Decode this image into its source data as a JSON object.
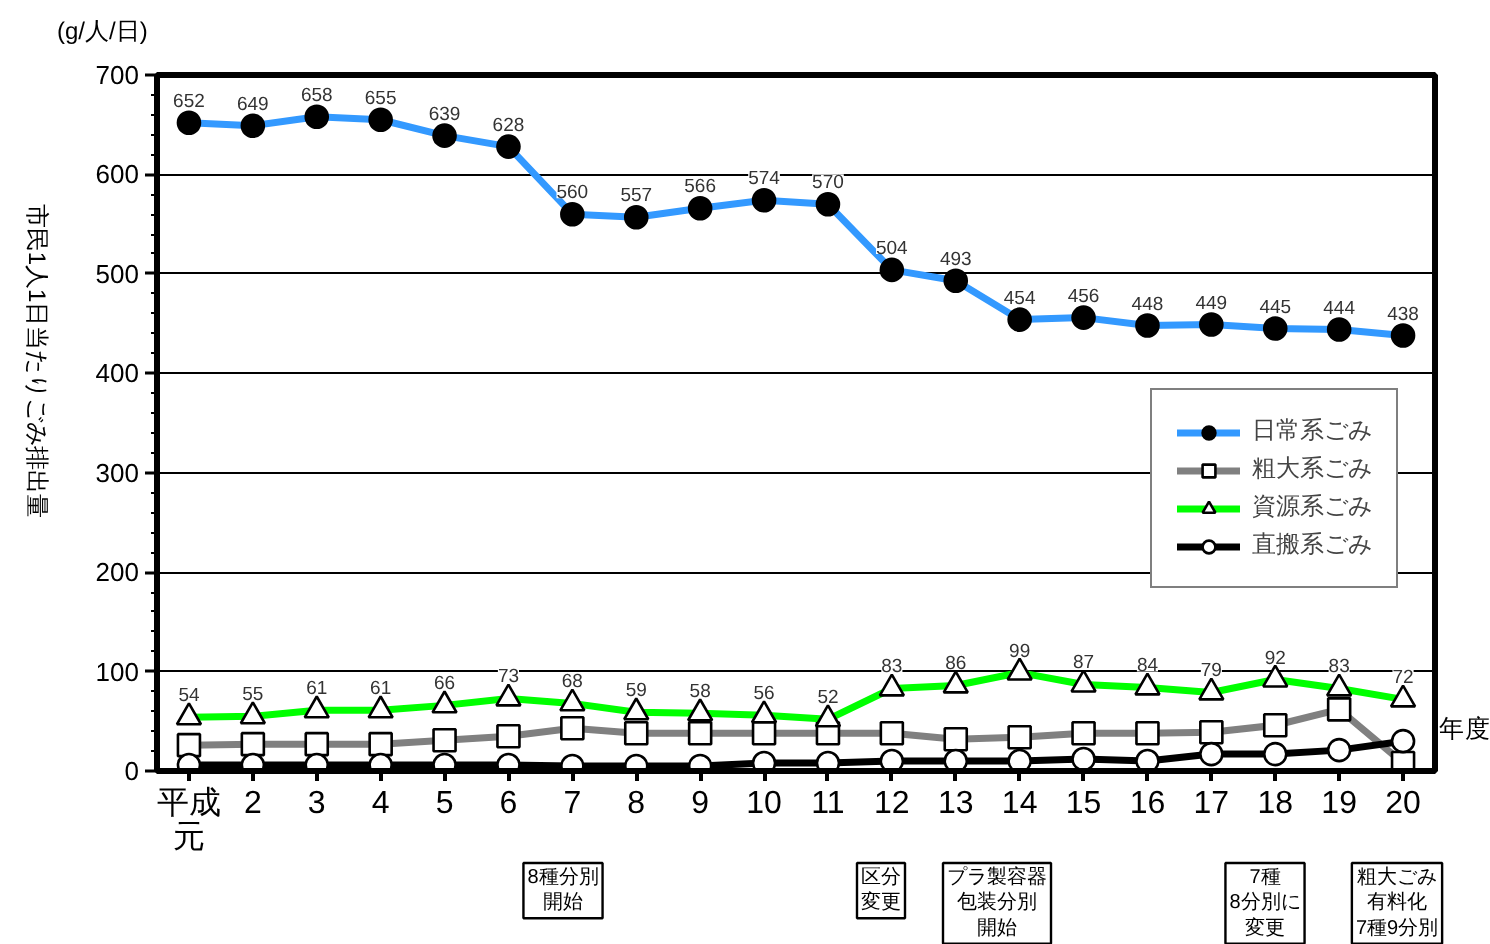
{
  "chart_data": {
    "type": "line",
    "ylabel": "市民1人1日当たりごみ排出量",
    "xlabel": "年度",
    "annotations": [
      "(g/人/日)",
      "8種分別開始",
      "区分変更",
      "プラ製容器包装分別開始",
      "7種8分別に変更",
      "粗大ごみ有料化7種9分別"
    ],
    "categories": [
      "平成元",
      "2",
      "3",
      "4",
      "5",
      "6",
      "7",
      "8",
      "9",
      "10",
      "11",
      "12",
      "13",
      "14",
      "15",
      "16",
      "17",
      "18",
      "19",
      "20"
    ],
    "ylim": [
      0,
      700
    ],
    "yticks": [
      0,
      {
        "value": 20,
        "label": null
      },
      {
        "value": 40,
        "label": null
      },
      {
        "value": 60,
        "label": null
      },
      {
        "value": 80,
        "label": null
      },
      100,
      {
        "value": 120,
        "label": null
      },
      {
        "value": 140,
        "label": null
      },
      {
        "value": 160,
        "label": null
      },
      {
        "value": 180,
        "label": null
      },
      200,
      {
        "value": 220,
        "label": null
      },
      {
        "value": 240,
        "label": null
      },
      {
        "value": 260,
        "label": null
      },
      {
        "value": 280,
        "label": null
      },
      300,
      {
        "value": 320,
        "label": null
      },
      {
        "value": 340,
        "label": null
      },
      {
        "value": 360,
        "label": null
      },
      {
        "value": 380,
        "label": null
      },
      400,
      {
        "value": 420,
        "label": null
      },
      {
        "value": 440,
        "label": null
      },
      {
        "value": 460,
        "label": null
      },
      {
        "value": 480,
        "label": null
      },
      500,
      {
        "value": 520,
        "label": null
      },
      {
        "value": 540,
        "label": null
      },
      {
        "value": 560,
        "label": null
      },
      {
        "value": 580,
        "label": null
      },
      600,
      {
        "value": 620,
        "label": null
      },
      {
        "value": 640,
        "label": null
      },
      {
        "value": 660,
        "label": null
      },
      {
        "value": 680,
        "label": null
      },
      700
    ],
    "grid": "y",
    "legend": "right",
    "series": [
      {
        "name": "日常系ごみ",
        "color": "#3399ff",
        "marker": "circle",
        "colors": [
          "#000000",
          "#000000",
          "#000000",
          "#000000",
          "#000000",
          "#000000",
          "#000000",
          "#000000",
          "#000000",
          "#000000",
          "#000000",
          "#000000",
          "#000000",
          "#000000",
          "#000000",
          "#000000",
          "#000000",
          "#000000",
          "#000000",
          "#000000"
        ],
        "values": [
          652,
          649,
          658,
          655,
          639,
          628,
          560,
          557,
          566,
          574,
          570,
          504,
          493,
          454,
          456,
          448,
          449,
          445,
          444,
          438
        ],
        "value_labels": [
          "652",
          "649",
          "658",
          "655",
          "639",
          "628",
          "560",
          "557",
          "566",
          "574",
          "570",
          "504",
          "493",
          "454",
          "456",
          "448",
          "449",
          "445",
          "444",
          "438"
        ]
      },
      {
        "name": "粗大系ごみ",
        "color": "#808080",
        "marker": "square",
        "colors": [
          "#ffffff",
          "#ffffff",
          "#ffffff",
          "#ffffff",
          "#ffffff",
          "#ffffff",
          "#ffffff",
          "#ffffff",
          "#ffffff",
          "#ffffff",
          "#ffffff",
          "#ffffff",
          "#ffffff",
          "#ffffff",
          "#ffffff",
          "#ffffff",
          "#ffffff",
          "#ffffff",
          "#ffffff",
          "#ffffff"
        ],
        "values": [
          26,
          27,
          27,
          27,
          31,
          35,
          43,
          38,
          38,
          38,
          38,
          38,
          32,
          34,
          38,
          38,
          39,
          46,
          62,
          8
        ]
      },
      {
        "name": "資源系ごみ",
        "color": "#00ff00",
        "marker": "triangle",
        "colors": [
          "#ffffff",
          "#ffffff",
          "#ffffff",
          "#ffffff",
          "#ffffff",
          "#ffffff",
          "#ffffff",
          "#ffffff",
          "#ffffff",
          "#ffffff",
          "#ffffff",
          "#ffffff",
          "#ffffff",
          "#ffffff",
          "#ffffff",
          "#ffffff",
          "#ffffff",
          "#ffffff",
          "#ffffff",
          "#ffffff"
        ],
        "values": [
          54,
          55,
          61,
          61,
          66,
          73,
          68,
          59,
          58,
          56,
          52,
          83,
          86,
          99,
          87,
          84,
          79,
          92,
          83,
          72
        ],
        "value_labels": [
          "54",
          "55",
          "61",
          "61",
          "66",
          "73",
          "68",
          "59",
          "58",
          "56",
          "52",
          "83",
          "86",
          "99",
          "87",
          "84",
          "79",
          "92",
          "83",
          "72"
        ]
      },
      {
        "name": "直搬系ごみ",
        "color": "#000000",
        "marker": "circle",
        "colors": [
          "#ffffff",
          "#ffffff",
          "#ffffff",
          "#ffffff",
          "#ffffff",
          "#ffffff",
          "#ffffff",
          "#ffffff",
          "#ffffff",
          "#ffffff",
          "#ffffff",
          "#ffffff",
          "#ffffff",
          "#ffffff",
          "#ffffff",
          "#ffffff",
          "#ffffff",
          "#ffffff",
          "#ffffff",
          "#ffffff"
        ],
        "values": [
          6,
          6,
          6,
          6,
          6,
          6,
          5,
          5,
          5,
          8,
          8,
          10,
          10,
          10,
          12,
          10,
          17,
          17,
          21,
          30
        ]
      }
    ]
  }
}
